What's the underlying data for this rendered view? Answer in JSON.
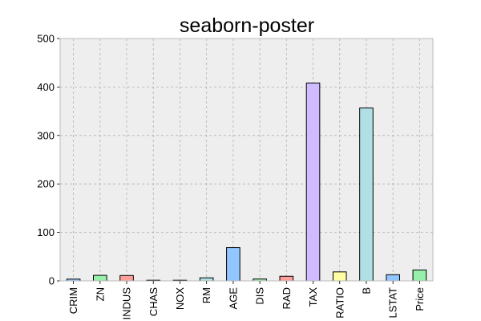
{
  "chart_data": {
    "type": "bar",
    "title": "seaborn-poster",
    "categories": [
      "CRIM",
      "ZN",
      "INDUS",
      "CHAS",
      "NOX",
      "RM",
      "AGE",
      "DIS",
      "RAD",
      "TAX",
      "RATIO",
      "B",
      "LSTAT",
      "Price"
    ],
    "values": [
      3.6,
      11.4,
      11.1,
      0.07,
      0.55,
      6.3,
      68.6,
      3.8,
      9.5,
      408.2,
      18.5,
      356.7,
      12.7,
      22.5
    ],
    "ylim": [
      0,
      500
    ],
    "yticks": [
      0,
      100,
      200,
      300,
      400,
      500
    ],
    "xlabel": "",
    "ylabel": "",
    "grid": true,
    "background_color": "#eeeeee",
    "bar_colors": [
      "#92c6ff",
      "#97f0aa",
      "#ff9f9a",
      "#d0bbff",
      "#fffea3",
      "#b0e0e6"
    ]
  }
}
